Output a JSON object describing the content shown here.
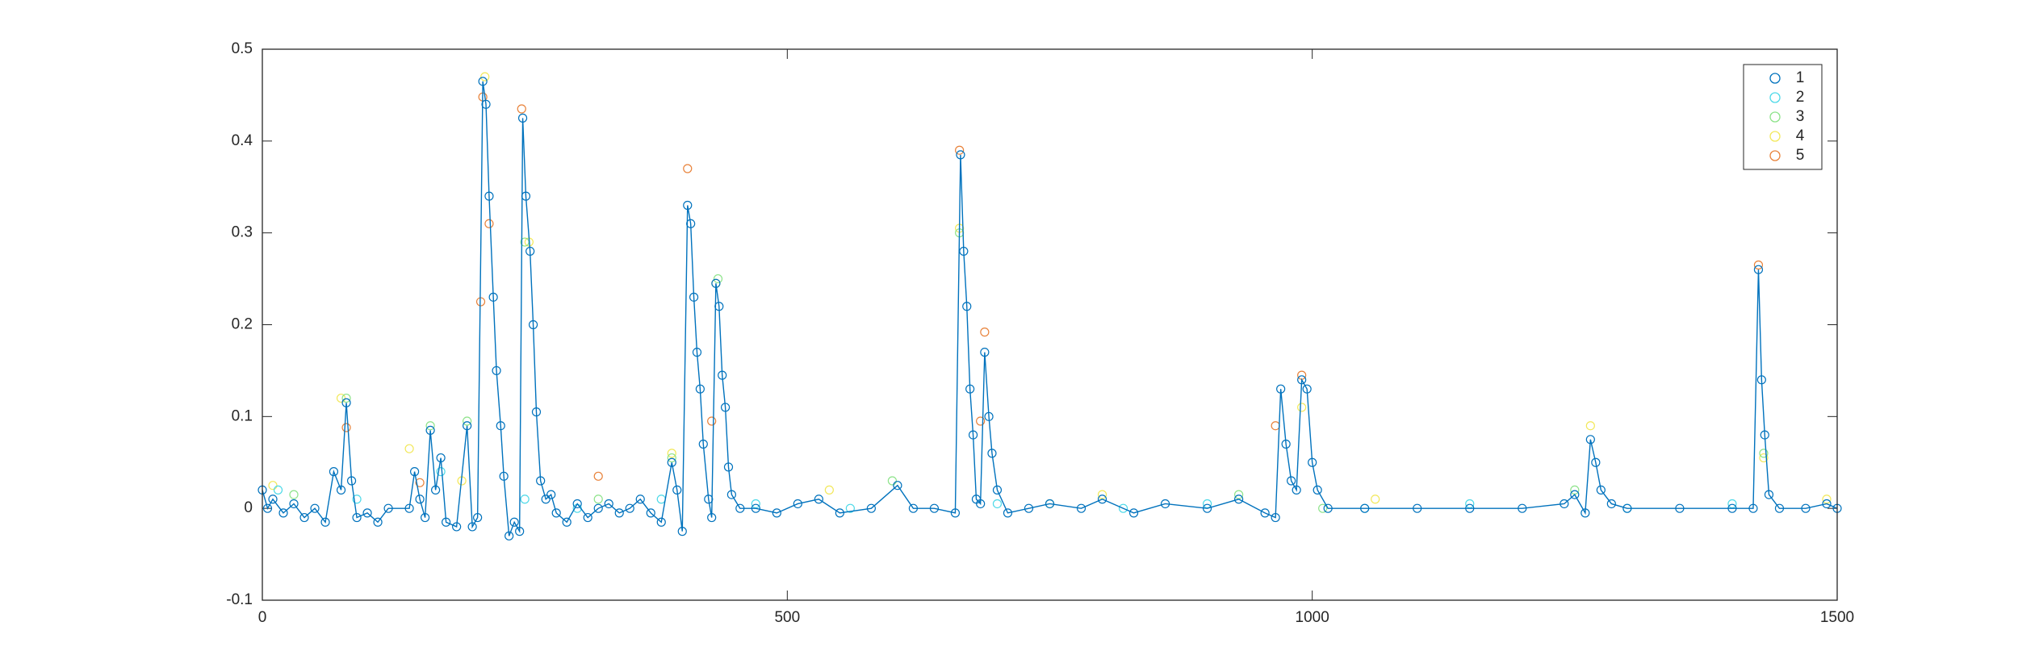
{
  "chart_data": {
    "type": "scatter",
    "xlim": [
      0,
      1500
    ],
    "xticks": [
      0,
      500,
      1000,
      1500
    ],
    "ylim": [
      -0.1,
      0.5
    ],
    "yticks": [
      -0.1,
      0,
      0.1,
      0.2,
      0.3,
      0.4,
      0.5
    ],
    "grid": false,
    "box": true,
    "legend": "upper right",
    "marker": "circle",
    "series": [
      {
        "name": "1",
        "color": "#0072bd",
        "line": true,
        "x": [
          0,
          5,
          10,
          20,
          30,
          40,
          50,
          60,
          68,
          75,
          80,
          85,
          90,
          100,
          110,
          120,
          140,
          145,
          150,
          155,
          160,
          165,
          170,
          175,
          185,
          195,
          200,
          205,
          210,
          213,
          216,
          220,
          223,
          227,
          230,
          235,
          240,
          245,
          248,
          251,
          255,
          258,
          261,
          265,
          270,
          275,
          280,
          290,
          300,
          310,
          320,
          330,
          340,
          350,
          360,
          370,
          380,
          390,
          395,
          400,
          405,
          408,
          411,
          414,
          417,
          420,
          425,
          428,
          432,
          435,
          438,
          441,
          444,
          447,
          455,
          470,
          490,
          510,
          530,
          550,
          580,
          605,
          620,
          640,
          660,
          665,
          668,
          671,
          674,
          677,
          680,
          684,
          688,
          692,
          695,
          700,
          710,
          730,
          750,
          780,
          800,
          830,
          860,
          900,
          930,
          955,
          965,
          970,
          975,
          980,
          985,
          990,
          995,
          1000,
          1005,
          1015,
          1050,
          1100,
          1150,
          1200,
          1240,
          1250,
          1260,
          1265,
          1270,
          1275,
          1285,
          1300,
          1350,
          1400,
          1420,
          1425,
          1428,
          1431,
          1435,
          1445,
          1470,
          1490,
          1500
        ],
        "values": [
          0.02,
          0.0,
          0.01,
          -0.005,
          0.005,
          -0.01,
          0.0,
          -0.015,
          0.04,
          0.02,
          0.115,
          0.03,
          -0.01,
          -0.005,
          -0.015,
          0.0,
          0.0,
          0.04,
          0.01,
          -0.01,
          0.085,
          0.02,
          0.055,
          -0.015,
          -0.02,
          0.09,
          -0.02,
          -0.01,
          0.465,
          0.44,
          0.34,
          0.23,
          0.15,
          0.09,
          0.035,
          -0.03,
          -0.015,
          -0.025,
          0.425,
          0.34,
          0.28,
          0.2,
          0.105,
          0.03,
          0.01,
          0.015,
          -0.005,
          -0.015,
          0.005,
          -0.01,
          0.0,
          0.005,
          -0.005,
          0.0,
          0.01,
          -0.005,
          -0.015,
          0.05,
          0.02,
          -0.025,
          0.33,
          0.31,
          0.23,
          0.17,
          0.13,
          0.07,
          0.01,
          -0.01,
          0.245,
          0.22,
          0.145,
          0.11,
          0.045,
          0.015,
          0.0,
          0.0,
          -0.005,
          0.005,
          0.01,
          -0.005,
          0.0,
          0.025,
          0.0,
          0.0,
          -0.005,
          0.385,
          0.28,
          0.22,
          0.13,
          0.08,
          0.01,
          0.005,
          0.17,
          0.1,
          0.06,
          0.02,
          -0.005,
          0.0,
          0.005,
          0.0,
          0.01,
          -0.005,
          0.005,
          0.0,
          0.01,
          -0.005,
          -0.01,
          0.13,
          0.07,
          0.03,
          0.02,
          0.14,
          0.13,
          0.05,
          0.02,
          0.0,
          0.0,
          0.0,
          0.0,
          0.0,
          0.005,
          0.015,
          -0.005,
          0.075,
          0.05,
          0.02,
          0.005,
          0.0,
          0.0,
          0.0,
          0.0,
          0.26,
          0.14,
          0.08,
          0.015,
          0.0,
          0.0,
          0.005,
          0.0
        ]
      },
      {
        "name": "2",
        "color": "#4dd9e8",
        "x": [
          15,
          90,
          170,
          250,
          300,
          380,
          470,
          560,
          700,
          820,
          900,
          1050,
          1150,
          1300,
          1400
        ],
        "values": [
          0.02,
          0.01,
          0.04,
          0.01,
          0.0,
          0.01,
          0.005,
          0.0,
          0.005,
          0.0,
          0.005,
          0.0,
          0.005,
          0.0,
          0.005
        ]
      },
      {
        "name": "3",
        "color": "#8de38a",
        "x": [
          30,
          80,
          160,
          195,
          250,
          320,
          390,
          434,
          600,
          664,
          750,
          930,
          1010,
          1250,
          1430
        ],
        "values": [
          0.015,
          0.12,
          0.09,
          0.095,
          0.29,
          0.01,
          0.055,
          0.25,
          0.03,
          0.3,
          0.005,
          0.015,
          0.0,
          0.02,
          0.06
        ]
      },
      {
        "name": "4",
        "color": "#f2e85a",
        "x": [
          10,
          75,
          140,
          190,
          212,
          254,
          390,
          432,
          540,
          664,
          800,
          990,
          1060,
          1265,
          1430,
          1490
        ],
        "values": [
          0.025,
          0.12,
          0.065,
          0.03,
          0.47,
          0.29,
          0.06,
          0.245,
          0.02,
          0.305,
          0.015,
          0.11,
          0.01,
          0.09,
          0.055,
          0.01
        ]
      },
      {
        "name": "5",
        "color": "#e8823a",
        "x": [
          80,
          150,
          208,
          210,
          216,
          247,
          320,
          405,
          428,
          664,
          684,
          688,
          965,
          990,
          1425
        ],
        "values": [
          0.088,
          0.028,
          0.225,
          0.448,
          0.31,
          0.435,
          0.035,
          0.37,
          0.095,
          0.39,
          0.095,
          0.192,
          0.09,
          0.145,
          0.265
        ]
      }
    ]
  }
}
